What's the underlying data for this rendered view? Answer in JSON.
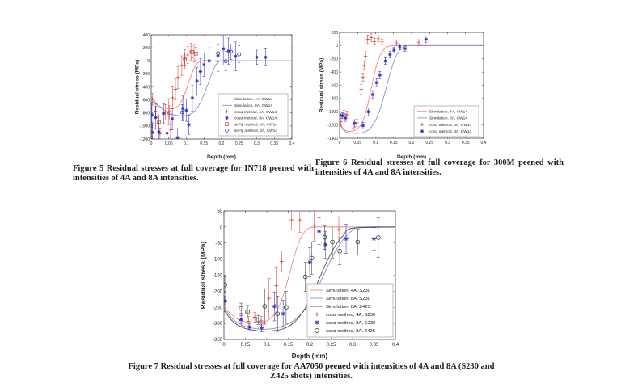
{
  "page": {
    "background": "#ffffff",
    "accent_red": "#d9453c",
    "accent_blue": "#2a32c4",
    "sim_red": "#ee8c84",
    "sim_blue": "#8a8ed6",
    "sim_black": "#4a4a4a"
  },
  "figures": [
    {
      "caption": "Figure 5 Residual stresses at full coverage for IN718 peened with intensities of 4A and 8A intensities."
    },
    {
      "caption": "Figure 6 Residual stresses at full coverage for 300M peened with intensities of 4A and 8A intensities."
    },
    {
      "caption": "Figure 7 Residual stresses at full coverage for AA7050 peened with intensities of 4A and 8A (S230 and Z425 shots) intensities."
    }
  ],
  "chart_data": [
    {
      "type": "line+scatter",
      "title": "",
      "xlabel": "Depth (mm)",
      "ylabel": "Residual stress (MPa)",
      "xlim": [
        0,
        0.4
      ],
      "ylim": [
        -1200,
        400
      ],
      "xticks": [
        0,
        0.05,
        0.1,
        0.15,
        0.2,
        0.25,
        0.3,
        0.35,
        0.4
      ],
      "xtick_labels": [
        "0",
        "0.05",
        "0.1",
        "0.15",
        "0.2",
        "0.25",
        "0.3",
        "0.35",
        "0.4"
      ],
      "yticks": [
        -1200,
        -1000,
        -800,
        -600,
        -400,
        -200,
        0,
        200,
        400
      ],
      "ytick_labels": [
        "-1200",
        "-1000",
        "-800",
        "-600",
        "-400",
        "-200",
        "0",
        "200",
        "400"
      ],
      "grid": false,
      "legend_position": "lower right",
      "series": [
        {
          "name": "Simulation, 4A, CW14",
          "kind": "line",
          "color": "#ee8c84",
          "x": [
            0,
            0.01,
            0.02,
            0.03,
            0.04,
            0.05,
            0.06,
            0.07,
            0.08,
            0.09,
            0.1,
            0.11,
            0.12,
            0.13,
            0.14,
            0.15,
            0.17,
            0.2,
            0.4
          ],
          "y": [
            -600,
            -650,
            -692,
            -716,
            -728,
            -733,
            -730,
            -714,
            -668,
            -578,
            -438,
            -278,
            -138,
            -45,
            -5,
            5,
            0,
            0,
            0
          ]
        },
        {
          "name": "Simulation, 8A, CW14",
          "kind": "line",
          "color": "#8a8ed6",
          "x": [
            0,
            0.01,
            0.02,
            0.04,
            0.06,
            0.08,
            0.09,
            0.1,
            0.11,
            0.12,
            0.13,
            0.14,
            0.15,
            0.16,
            0.17,
            0.18,
            0.19,
            0.2,
            0.4
          ],
          "y": [
            -545,
            -622,
            -682,
            -770,
            -822,
            -843,
            -845,
            -840,
            -824,
            -790,
            -728,
            -638,
            -518,
            -378,
            -228,
            -98,
            -25,
            0,
            0
          ]
        },
        {
          "name": "cosα method, 4A, CW14",
          "kind": "scatter",
          "marker": "plus",
          "color": "#d9453c",
          "x": [
            0.002,
            0.004,
            0.012,
            0.02,
            0.025,
            0.04,
            0.05,
            0.055,
            0.061,
            0.069,
            0.076,
            0.087,
            0.095,
            0.104,
            0.113,
            0.122
          ],
          "y": [
            -1090,
            -590,
            -770,
            -960,
            -1120,
            -790,
            -780,
            -1060,
            -568,
            -438,
            -255,
            -72,
            30,
            91,
            140,
            120
          ],
          "err": [
            100,
            90,
            110,
            130,
            90,
            120,
            200,
            150,
            170,
            160,
            170,
            150,
            140,
            130,
            130,
            140
          ]
        },
        {
          "name": "cosα method, 8A, CW14",
          "kind": "scatter",
          "marker": "asterisk",
          "color": "#2a32c4",
          "x": [
            0.002,
            0.004,
            0.013,
            0.022,
            0.035,
            0.045,
            0.06,
            0.075,
            0.09,
            0.1,
            0.107,
            0.117,
            0.13,
            0.14,
            0.15,
            0.165,
            0.19,
            0.205,
            0.22,
            0.24,
            0.3,
            0.325
          ],
          "y": [
            -830,
            -1100,
            -870,
            -1090,
            -810,
            -1110,
            -890,
            -1180,
            -730,
            -760,
            -980,
            -570,
            -310,
            -165,
            -60,
            0,
            80,
            185,
            150,
            70,
            55,
            55
          ],
          "err": [
            190,
            150,
            170,
            240,
            150,
            200,
            170,
            140,
            190,
            170,
            150,
            200,
            210,
            200,
            180,
            200,
            240,
            250,
            200,
            220,
            110,
            130
          ]
        },
        {
          "name": "sin²ψ method, 4A, CW14",
          "kind": "scatter",
          "marker": "square",
          "color": "#d9453c",
          "x": [
            0.022,
            0.052,
            0.096,
            0.116,
            0.127
          ],
          "y": [
            -940,
            -800,
            20,
            135,
            110
          ],
          "err": [
            90,
            110,
            100,
            90,
            100
          ]
        },
        {
          "name": "sin²ψ method, 8A, CW14",
          "kind": "scatter",
          "marker": "circle",
          "color": "#2a32c4",
          "x": [
            0.088,
            0.19,
            0.212,
            0.227,
            0.25
          ],
          "y": [
            -790,
            115,
            -5,
            140,
            100
          ],
          "err": [
            120,
            130,
            150,
            120,
            130
          ]
        }
      ]
    },
    {
      "type": "line+scatter",
      "title": "",
      "xlabel": "Depth (mm)",
      "ylabel": "Residual stress (MPa)",
      "xlim": [
        0,
        0.4
      ],
      "ylim": [
        -1400,
        200
      ],
      "xticks": [
        0,
        0.05,
        0.1,
        0.15,
        0.2,
        0.25,
        0.3,
        0.35,
        0.4
      ],
      "xtick_labels": [
        "0",
        "0.05",
        "0.1",
        "0.15",
        "0.2",
        "0.25",
        "0.3",
        "0.35",
        "0.4"
      ],
      "yticks": [
        -1400,
        -1200,
        -1000,
        -800,
        -600,
        -400,
        -200,
        0,
        200
      ],
      "ytick_labels": [
        "-1400",
        "-1200",
        "-1000",
        "-800",
        "-600",
        "-400",
        "-200",
        "0",
        "200"
      ],
      "grid": false,
      "legend_position": "lower right",
      "series": [
        {
          "name": "Simulation, 4A, CW14",
          "kind": "line",
          "color": "#ee8c84",
          "x": [
            0,
            0.005,
            0.01,
            0.02,
            0.03,
            0.04,
            0.05,
            0.06,
            0.07,
            0.08,
            0.09,
            0.1,
            0.11,
            0.12,
            0.13,
            0.14,
            0.16,
            0.2,
            0.4
          ],
          "y": [
            -1150,
            -1210,
            -1255,
            -1290,
            -1295,
            -1285,
            -1255,
            -1190,
            -1060,
            -850,
            -590,
            -350,
            -180,
            -80,
            -25,
            -5,
            0,
            0,
            0
          ]
        },
        {
          "name": "Simulation, 8A, CW14",
          "kind": "line",
          "color": "#8a8ed6",
          "x": [
            0,
            0.005,
            0.01,
            0.02,
            0.04,
            0.06,
            0.07,
            0.08,
            0.09,
            0.1,
            0.11,
            0.12,
            0.13,
            0.14,
            0.15,
            0.16,
            0.17,
            0.18,
            0.19,
            0.2,
            0.22,
            0.4
          ],
          "y": [
            -1170,
            -1230,
            -1270,
            -1310,
            -1325,
            -1320,
            -1305,
            -1275,
            -1220,
            -1130,
            -1000,
            -830,
            -630,
            -430,
            -255,
            -125,
            -50,
            -15,
            -3,
            0,
            0,
            0
          ]
        },
        {
          "name": "cosα method, 4A, CW14",
          "kind": "scatter",
          "marker": "plus",
          "color": "#d9453c",
          "x": [
            0.003,
            0.012,
            0.02,
            0.038,
            0.048,
            0.06,
            0.065,
            0.068,
            0.072,
            0.078,
            0.088,
            0.097,
            0.108,
            0.118,
            0.158,
            0.22
          ],
          "y": [
            -1150,
            -1030,
            -1045,
            -1190,
            -1165,
            -660,
            -480,
            -300,
            -160,
            95,
            120,
            60,
            105,
            55,
            40,
            50
          ],
          "err": [
            60,
            50,
            55,
            60,
            55,
            70,
            60,
            60,
            70,
            65,
            60,
            50,
            45,
            40,
            40,
            40
          ]
        },
        {
          "name": "cosα method, 8A, CW14",
          "kind": "scatter",
          "marker": "asterisk",
          "color": "#2a32c4",
          "x": [
            0.002,
            0.008,
            0.016,
            0.042,
            0.065,
            0.08,
            0.092,
            0.103,
            0.112,
            0.127,
            0.14,
            0.151,
            0.167,
            0.182,
            0.24
          ],
          "y": [
            -1050,
            -1060,
            -1095,
            -1175,
            -1210,
            -1000,
            -740,
            -560,
            -445,
            -233,
            -136,
            -70,
            -20,
            -45,
            95
          ],
          "err": [
            45,
            45,
            50,
            55,
            50,
            60,
            60,
            60,
            55,
            50,
            50,
            45,
            45,
            45,
            50
          ]
        }
      ]
    },
    {
      "type": "line+scatter",
      "title": "",
      "xlabel": "Depth (mm)",
      "ylabel": "Residual stress (MPa)",
      "xlim": [
        0,
        0.4
      ],
      "ylim": [
        -350,
        50
      ],
      "xticks": [
        0,
        0.05,
        0.1,
        0.15,
        0.2,
        0.25,
        0.3,
        0.35,
        0.4
      ],
      "xtick_labels": [
        "0",
        "0.05",
        "0.1",
        "0.15",
        "0.2",
        "0.25",
        "0.3",
        "0.35",
        "0.4"
      ],
      "yticks": [
        -350,
        -300,
        -250,
        -200,
        -150,
        -100,
        -50,
        0,
        50
      ],
      "ytick_labels": [
        "-350",
        "-300",
        "-250",
        "-200",
        "-150",
        "-100",
        "-50",
        "0",
        "50"
      ],
      "grid": false,
      "legend_position": "lower right",
      "series": [
        {
          "name": "Simulation, 4A, S230",
          "kind": "line",
          "color": "#ee8c84",
          "x": [
            0,
            0.01,
            0.03,
            0.05,
            0.07,
            0.09,
            0.1,
            0.11,
            0.12,
            0.13,
            0.14,
            0.15,
            0.16,
            0.17,
            0.18,
            0.19,
            0.2,
            0.21,
            0.23,
            0.4
          ],
          "y": [
            -248,
            -263,
            -285,
            -295,
            -298,
            -296,
            -292,
            -283,
            -267,
            -243,
            -206,
            -160,
            -110,
            -65,
            -32,
            -12,
            -3,
            0,
            0,
            0
          ]
        },
        {
          "name": "Simulation, 8A, S230",
          "kind": "line",
          "color": "#8a8ed6",
          "x": [
            0,
            0.02,
            0.04,
            0.06,
            0.08,
            0.1,
            0.12,
            0.14,
            0.16,
            0.18,
            0.2,
            0.22,
            0.24,
            0.26,
            0.28,
            0.3,
            0.32,
            0.4
          ],
          "y": [
            -252,
            -286,
            -304,
            -313,
            -317,
            -318,
            -315,
            -307,
            -294,
            -271,
            -236,
            -186,
            -128,
            -76,
            -36,
            -10,
            0,
            0
          ]
        },
        {
          "name": "Simulation, 8A, Z425",
          "kind": "line",
          "color": "#4a4a4a",
          "x": [
            0,
            0.02,
            0.04,
            0.06,
            0.08,
            0.1,
            0.12,
            0.14,
            0.16,
            0.18,
            0.2,
            0.22,
            0.24,
            0.26,
            0.28,
            0.3,
            0.4
          ],
          "y": [
            -259,
            -293,
            -311,
            -319,
            -323,
            -324,
            -322,
            -316,
            -301,
            -272,
            -228,
            -168,
            -108,
            -58,
            -24,
            -4,
            0
          ]
        },
        {
          "name": "cosα method, 4A, S230",
          "kind": "scatter",
          "marker": "plus",
          "color": "#d9453c",
          "x": [
            0.002,
            0.04,
            0.057,
            0.072,
            0.087,
            0.105,
            0.122,
            0.135,
            0.158,
            0.177,
            0.21,
            0.268
          ],
          "y": [
            -228,
            -290,
            -293,
            -281,
            -292,
            -222,
            -182,
            -107,
            22,
            22,
            4,
            -8
          ],
          "err": [
            25,
            18,
            15,
            15,
            14,
            62,
            58,
            32,
            32,
            38,
            48,
            40
          ]
        },
        {
          "name": "cosα method, 8A, S230",
          "kind": "scatter",
          "marker": "asterisk",
          "color": "#2a32c4",
          "x": [
            0.002,
            0.04,
            0.06,
            0.088,
            0.118,
            0.138,
            0.2,
            0.222,
            0.237,
            0.285,
            0.35
          ],
          "y": [
            -230,
            -288,
            -312,
            -314,
            -247,
            -270,
            -110,
            -13,
            -55,
            -37,
            -37
          ],
          "err": [
            15,
            12,
            12,
            12,
            45,
            42,
            45,
            42,
            42,
            45,
            35
          ]
        },
        {
          "name": "cosα method, 8A, Z425",
          "kind": "scatter",
          "marker": "circle",
          "color": "#3a3a3a",
          "x": [
            0.002,
            0.04,
            0.055,
            0.08,
            0.095,
            0.125,
            0.145,
            0.19,
            0.205,
            0.235,
            0.253,
            0.27,
            0.312,
            0.36
          ],
          "y": [
            -180,
            -253,
            -264,
            -289,
            -247,
            -270,
            -250,
            -155,
            -97,
            -32,
            -47,
            -75,
            -47,
            -33
          ],
          "err": [
            25,
            16,
            20,
            14,
            55,
            55,
            50,
            45,
            50,
            38,
            50,
            42,
            40,
            62
          ]
        }
      ]
    }
  ]
}
